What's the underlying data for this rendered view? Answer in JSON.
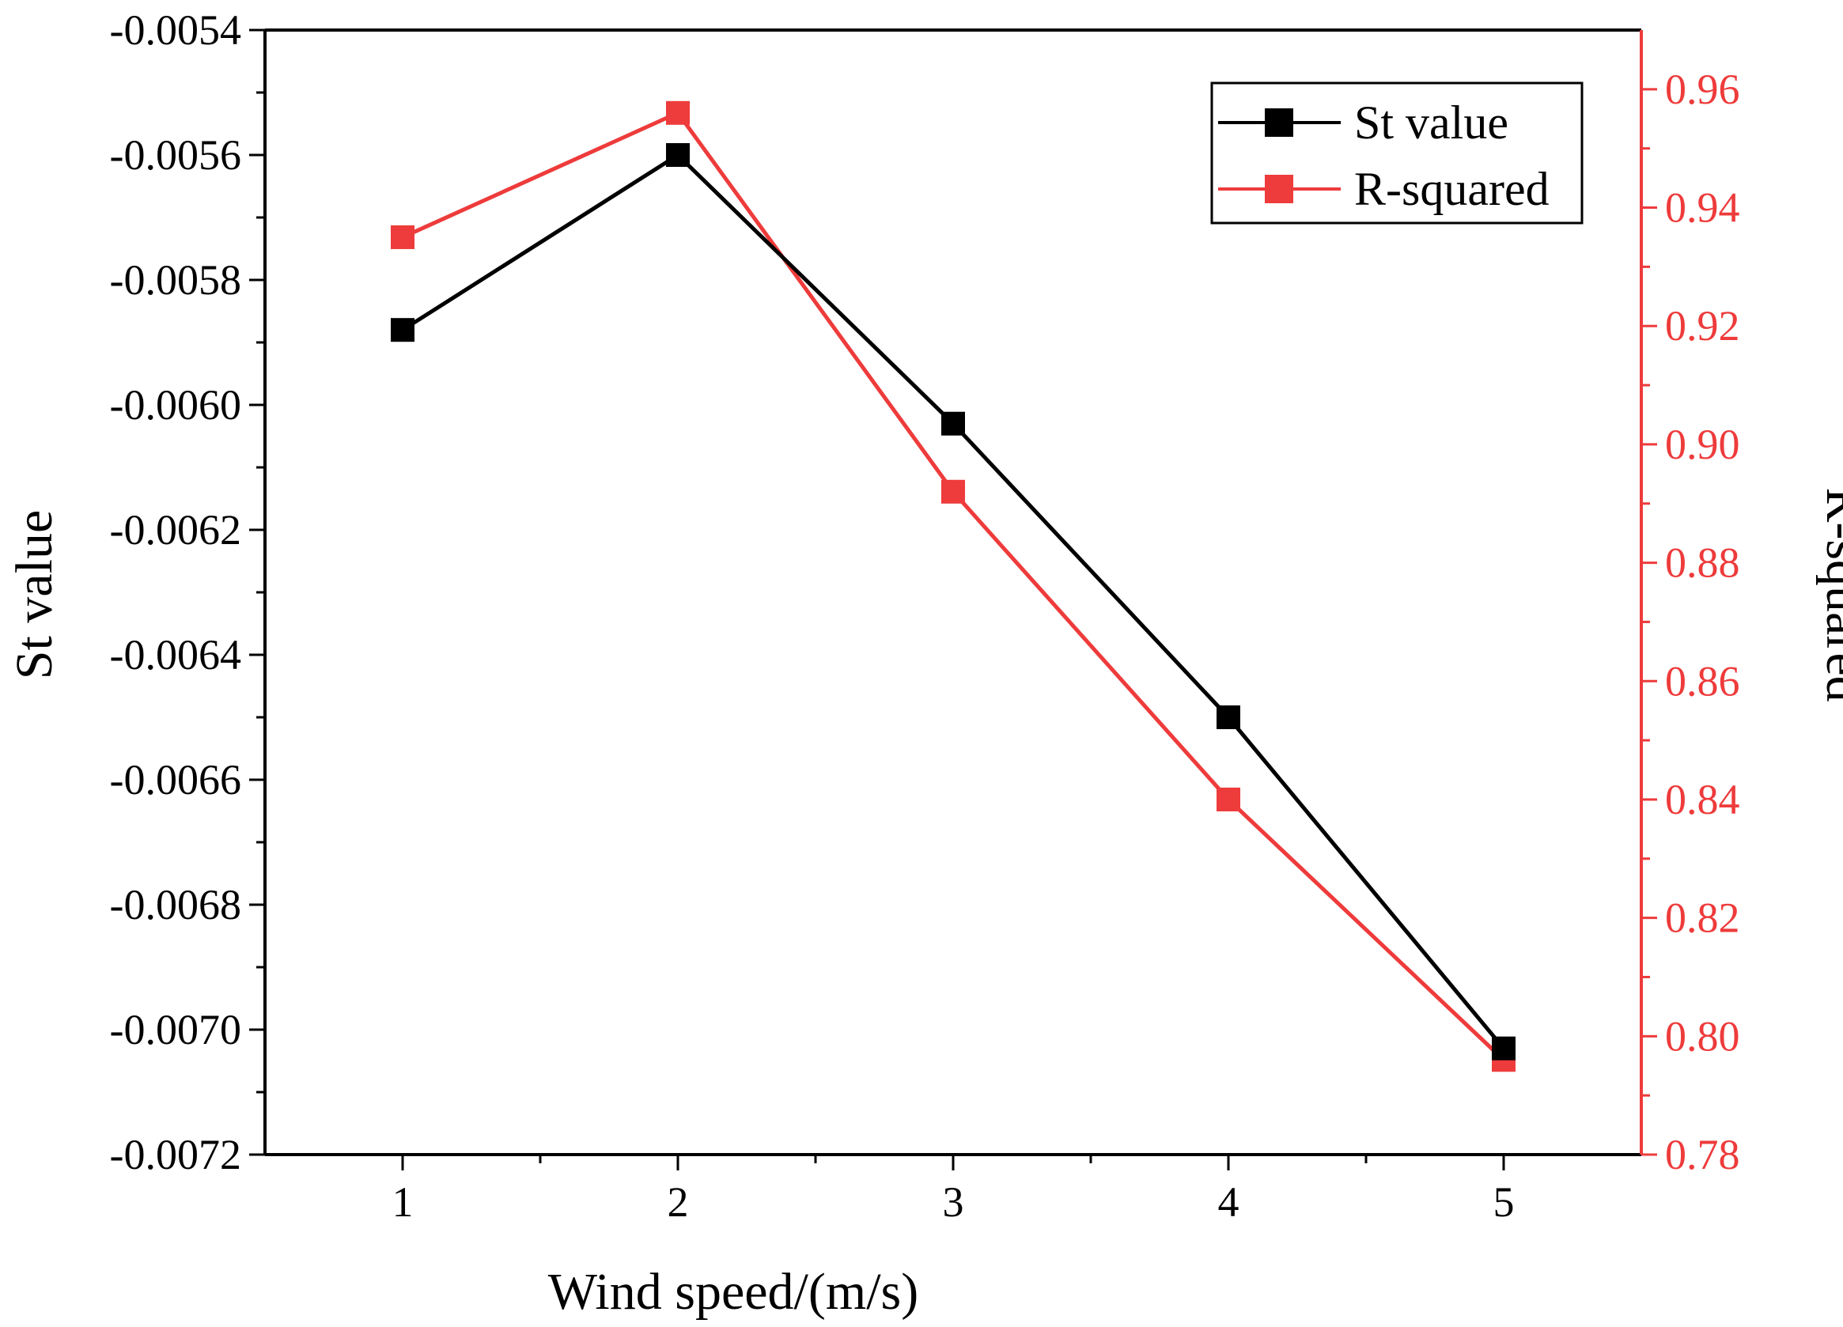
{
  "chart_data": {
    "type": "line",
    "x": [
      1,
      2,
      3,
      4,
      5
    ],
    "xlabel": "Wind speed/(m/s)",
    "xlim": [
      0.5,
      5.5
    ],
    "x_ticks": [
      "1",
      "2",
      "3",
      "4",
      "5"
    ],
    "y_left": {
      "label": "St value",
      "lim": [
        -0.0072,
        -0.0054
      ],
      "ticks": [
        "-0.0054",
        "-0.0056",
        "-0.0058",
        "-0.0060",
        "-0.0062",
        "-0.0064",
        "-0.0066",
        "-0.0068",
        "-0.0070",
        "-0.0072"
      ],
      "tick_values": [
        -0.0054,
        -0.0056,
        -0.0058,
        -0.006,
        -0.0062,
        -0.0064,
        -0.0066,
        -0.0068,
        -0.007,
        -0.0072
      ],
      "color": "#000000"
    },
    "y_right": {
      "label": "R-squared",
      "lim": [
        0.78,
        0.97
      ],
      "ticks": [
        "0.96",
        "0.94",
        "0.92",
        "0.90",
        "0.88",
        "0.86",
        "0.84",
        "0.82",
        "0.80",
        "0.78"
      ],
      "tick_values": [
        0.96,
        0.94,
        0.92,
        0.9,
        0.88,
        0.86,
        0.84,
        0.82,
        0.8,
        0.78
      ],
      "color": "#ee3b3b"
    },
    "series": [
      {
        "name": "St value",
        "axis": "left",
        "color": "#000000",
        "values": [
          -0.00588,
          -0.0056,
          -0.00603,
          -0.0065,
          -0.00703
        ]
      },
      {
        "name": "R-squared",
        "axis": "right",
        "color": "#ee3b3b",
        "values": [
          0.935,
          0.956,
          0.892,
          0.84,
          0.796
        ]
      }
    ],
    "legend": {
      "position": "top-right",
      "entries": [
        "St value",
        "R-squared"
      ]
    }
  }
}
